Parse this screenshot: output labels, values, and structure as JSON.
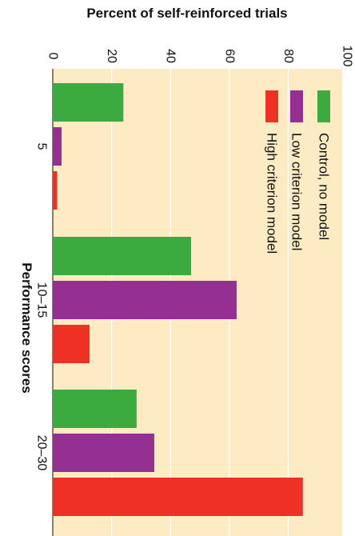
{
  "chart_data": {
    "type": "bar",
    "orientation": "rotated-horizontal",
    "title": "",
    "value_axis_label": "Percent of self-reinforced trials",
    "category_axis_label": "Performance scores",
    "value_ticks": [
      "0",
      "20",
      "40",
      "60",
      "80",
      "100"
    ],
    "ylim": [
      0,
      100
    ],
    "categories": [
      "5",
      "10–15",
      "20–30"
    ],
    "series": [
      {
        "name": "Control, no model",
        "color": "#3bab3f",
        "values": [
          24,
          47,
          28.5
        ]
      },
      {
        "name": "Low criterion model",
        "color": "#952f92",
        "values": [
          3,
          62.5,
          34.5
        ]
      },
      {
        "name": "High criterion model",
        "color": "#ee3124",
        "values": [
          1.5,
          12.5,
          85
        ]
      }
    ],
    "plot_background": "#fdebc4",
    "grid": true,
    "legend_placement": "upper-right"
  }
}
